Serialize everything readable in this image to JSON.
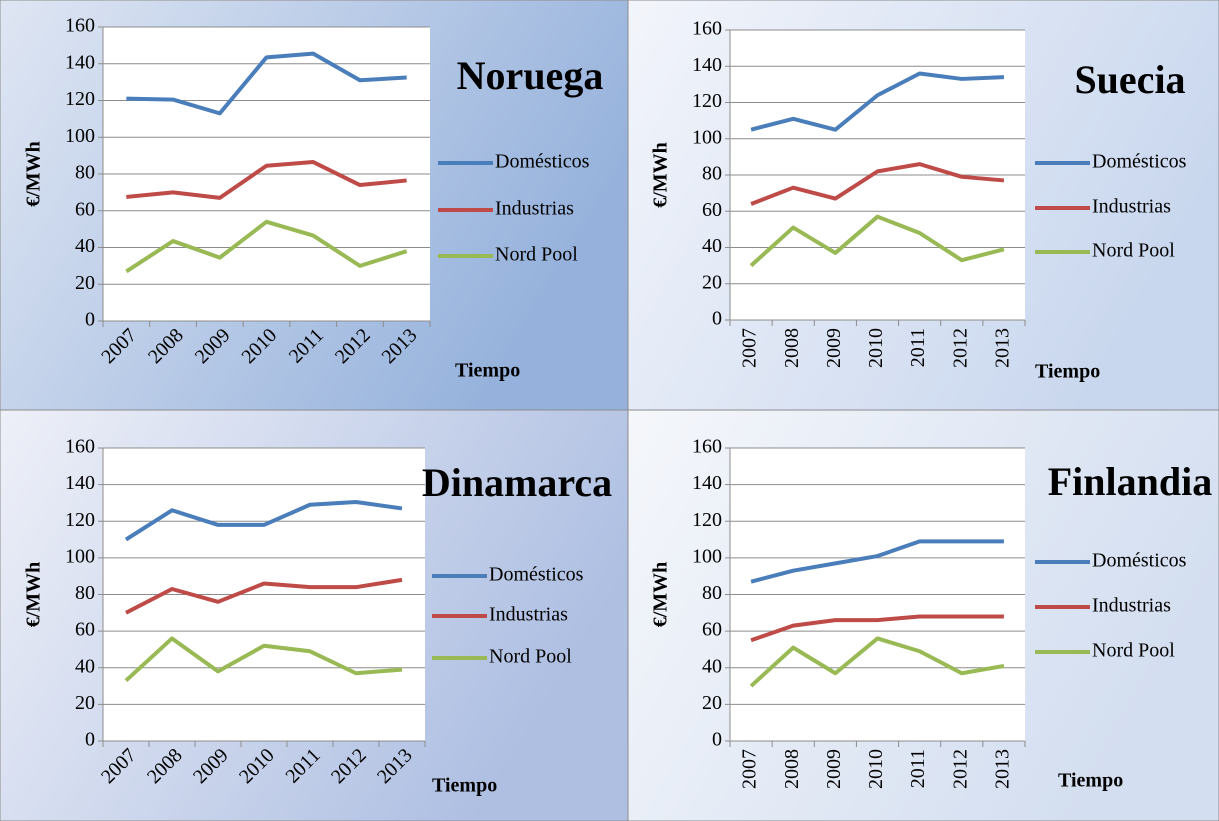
{
  "chart_data": [
    {
      "type": "line",
      "title": "Noruega",
      "ylabel": "€/MWh",
      "xlabel": "Tiempo",
      "categories": [
        "2007",
        "2008",
        "2009",
        "2010",
        "2011",
        "2012",
        "2013"
      ],
      "series": [
        {
          "name": "Domésticos",
          "color": "#4a7ebb",
          "values": [
            121,
            120.5,
            113,
            143.5,
            145.5,
            131,
            132.5
          ]
        },
        {
          "name": "Industrias",
          "color": "#be4b48",
          "values": [
            67.5,
            70,
            67,
            84.5,
            86.5,
            74,
            76.5
          ]
        },
        {
          "name": "Nord Pool",
          "color": "#98b954",
          "values": [
            27,
            43.5,
            34.5,
            54,
            46.5,
            30,
            38
          ]
        }
      ],
      "ylim": [
        0,
        160
      ],
      "yticks": [
        0,
        20,
        40,
        60,
        80,
        100,
        120,
        140,
        160
      ],
      "grid": true,
      "legend": "right"
    },
    {
      "type": "line",
      "title": "Suecia",
      "ylabel": "€/MWh",
      "xlabel": "Tiempo",
      "categories": [
        "2007",
        "2008",
        "2009",
        "2010",
        "2011",
        "2012",
        "2013"
      ],
      "series": [
        {
          "name": "Domésticos",
          "color": "#4a7ebb",
          "values": [
            105,
            111,
            105,
            124,
            136,
            133,
            134
          ]
        },
        {
          "name": "Industrias",
          "color": "#be4b48",
          "values": [
            64,
            73,
            67,
            82,
            86,
            79,
            77
          ]
        },
        {
          "name": "Nord Pool",
          "color": "#98b954",
          "values": [
            30,
            51,
            37,
            57,
            48,
            33,
            39
          ]
        }
      ],
      "ylim": [
        0,
        160
      ],
      "yticks": [
        0,
        20,
        40,
        60,
        80,
        100,
        120,
        140,
        160
      ],
      "grid": true,
      "legend": "right"
    },
    {
      "type": "line",
      "title": "Dinamarca",
      "ylabel": "€/MWh",
      "xlabel": "Tiempo",
      "categories": [
        "2007",
        "2008",
        "2009",
        "2010",
        "2011",
        "2012",
        "2013"
      ],
      "series": [
        {
          "name": "Domésticos",
          "color": "#4a7ebb",
          "values": [
            110,
            126,
            118,
            118,
            129,
            130.5,
            127
          ]
        },
        {
          "name": "Industrias",
          "color": "#be4b48",
          "values": [
            70,
            83,
            76,
            86,
            84,
            84,
            88
          ]
        },
        {
          "name": "Nord Pool",
          "color": "#98b954",
          "values": [
            33,
            56,
            38,
            52,
            49,
            37,
            39
          ]
        }
      ],
      "ylim": [
        0,
        160
      ],
      "yticks": [
        0,
        20,
        40,
        60,
        80,
        100,
        120,
        140,
        160
      ],
      "grid": true,
      "legend": "right"
    },
    {
      "type": "line",
      "title": "Finlandia",
      "ylabel": "€/MWh",
      "xlabel": "Tiempo",
      "categories": [
        "2007",
        "2008",
        "2009",
        "2010",
        "2011",
        "2012",
        "2013"
      ],
      "series": [
        {
          "name": "Domésticos",
          "color": "#4a7ebb",
          "values": [
            87,
            93,
            97,
            101,
            109,
            109,
            109
          ]
        },
        {
          "name": "Industrias",
          "color": "#be4b48",
          "values": [
            55,
            63,
            66,
            66,
            68,
            68,
            68
          ]
        },
        {
          "name": "Nord Pool",
          "color": "#98b954",
          "values": [
            30,
            51,
            37,
            56,
            49,
            37,
            41
          ]
        }
      ],
      "ylim": [
        0,
        160
      ],
      "yticks": [
        0,
        20,
        40,
        60,
        80,
        100,
        120,
        140,
        160
      ],
      "grid": true,
      "legend": "right"
    }
  ]
}
